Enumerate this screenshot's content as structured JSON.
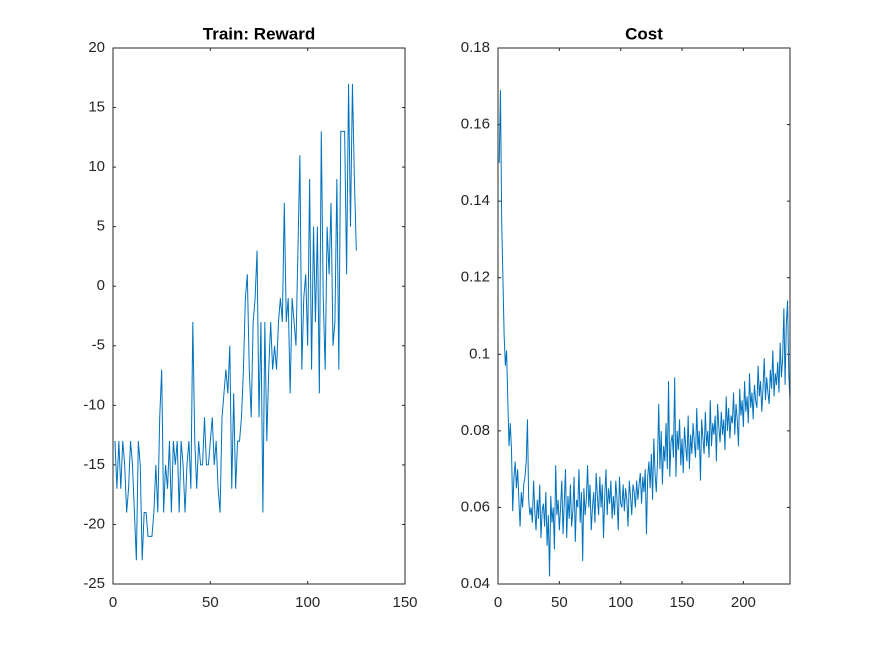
{
  "chart_data": [
    {
      "type": "line",
      "title": "Train: Reward",
      "color": "#0072bd",
      "xlim": [
        0,
        150
      ],
      "xticks": [
        0,
        50,
        100,
        150
      ],
      "ylim": [
        -25,
        20
      ],
      "yticks": [
        -25,
        -20,
        -15,
        -10,
        -5,
        0,
        5,
        10,
        15,
        20
      ],
      "values": [
        -13,
        -17,
        -13,
        -17,
        -13,
        -15,
        -19,
        -17,
        -13,
        -15,
        -19,
        -23,
        -13,
        -15,
        -23,
        -19,
        -19,
        -21,
        -21,
        -21,
        -19,
        -15,
        -19,
        -11,
        -7,
        -19,
        -15,
        -17,
        -13,
        -19,
        -13,
        -15,
        -13,
        -19,
        -13,
        -15,
        -19,
        -15,
        -13,
        -17,
        -3,
        -13,
        -17,
        -13,
        -15,
        -15,
        -11,
        -15,
        -15,
        -13,
        -11,
        -15,
        -13,
        -17,
        -19,
        -11,
        -9,
        -7,
        -9,
        -5,
        -17,
        -9,
        -17,
        -13,
        -13,
        -11,
        -7,
        -1,
        1,
        -7,
        -11,
        -3,
        -1,
        3,
        -11,
        -3,
        -19,
        -3,
        -13,
        -7,
        -3,
        -7,
        -5,
        -7,
        -3,
        -1,
        -3,
        7,
        -3,
        -1,
        -9,
        -1,
        -3,
        -5,
        3,
        11,
        -7,
        -1,
        1,
        -5,
        9,
        -7,
        5,
        -3,
        5,
        -9,
        13,
        -1,
        -7,
        5,
        1,
        7,
        -5,
        -3,
        9,
        -7,
        13,
        13,
        13,
        1,
        17,
        5,
        17,
        9,
        3
      ]
    },
    {
      "type": "line",
      "title": "Cost",
      "color": "#0072bd",
      "xlim": [
        0,
        238
      ],
      "xticks": [
        0,
        50,
        100,
        150,
        200
      ],
      "ylim": [
        0.04,
        0.18
      ],
      "yticks": [
        0.04,
        0.06,
        0.08,
        0.1,
        0.12,
        0.14,
        0.16,
        0.18
      ],
      "values": [
        0.15,
        0.169,
        0.135,
        0.12,
        0.105,
        0.097,
        0.101,
        0.088,
        0.076,
        0.082,
        0.075,
        0.059,
        0.068,
        0.072,
        0.065,
        0.07,
        0.062,
        0.055,
        0.064,
        0.06,
        0.066,
        0.068,
        0.072,
        0.083,
        0.062,
        0.058,
        0.06,
        0.056,
        0.067,
        0.059,
        0.054,
        0.062,
        0.057,
        0.066,
        0.052,
        0.059,
        0.061,
        0.055,
        0.064,
        0.05,
        0.058,
        0.042,
        0.063,
        0.056,
        0.06,
        0.049,
        0.071,
        0.058,
        0.062,
        0.054,
        0.06,
        0.067,
        0.053,
        0.061,
        0.07,
        0.052,
        0.063,
        0.057,
        0.066,
        0.055,
        0.059,
        0.068,
        0.051,
        0.062,
        0.06,
        0.07,
        0.056,
        0.064,
        0.046,
        0.065,
        0.058,
        0.062,
        0.071,
        0.06,
        0.066,
        0.054,
        0.06,
        0.064,
        0.056,
        0.069,
        0.063,
        0.058,
        0.068,
        0.06,
        0.066,
        0.052,
        0.063,
        0.07,
        0.058,
        0.065,
        0.061,
        0.067,
        0.057,
        0.063,
        0.058,
        0.067,
        0.062,
        0.054,
        0.068,
        0.061,
        0.06,
        0.066,
        0.059,
        0.065,
        0.062,
        0.055,
        0.067,
        0.063,
        0.058,
        0.066,
        0.064,
        0.06,
        0.067,
        0.062,
        0.066,
        0.069,
        0.061,
        0.068,
        0.064,
        0.07,
        0.053,
        0.068,
        0.072,
        0.065,
        0.074,
        0.062,
        0.078,
        0.069,
        0.064,
        0.072,
        0.087,
        0.07,
        0.08,
        0.066,
        0.076,
        0.072,
        0.082,
        0.07,
        0.093,
        0.068,
        0.077,
        0.079,
        0.073,
        0.094,
        0.068,
        0.08,
        0.075,
        0.083,
        0.071,
        0.078,
        0.069,
        0.081,
        0.076,
        0.072,
        0.084,
        0.07,
        0.079,
        0.074,
        0.082,
        0.077,
        0.073,
        0.086,
        0.075,
        0.08,
        0.067,
        0.083,
        0.078,
        0.074,
        0.085,
        0.076,
        0.08,
        0.073,
        0.088,
        0.076,
        0.082,
        0.079,
        0.084,
        0.072,
        0.087,
        0.081,
        0.077,
        0.085,
        0.079,
        0.083,
        0.075,
        0.089,
        0.08,
        0.086,
        0.078,
        0.084,
        0.082,
        0.09,
        0.079,
        0.087,
        0.083,
        0.076,
        0.091,
        0.084,
        0.088,
        0.081,
        0.093,
        0.085,
        0.089,
        0.082,
        0.095,
        0.086,
        0.09,
        0.083,
        0.092,
        0.088,
        0.086,
        0.097,
        0.089,
        0.093,
        0.085,
        0.091,
        0.099,
        0.088,
        0.094,
        0.09,
        0.087,
        0.096,
        0.091,
        0.101,
        0.089,
        0.095,
        0.092,
        0.098,
        0.09,
        0.103,
        0.094,
        0.099,
        0.112,
        0.092,
        0.108,
        0.114,
        0.095,
        0.088
      ]
    }
  ]
}
